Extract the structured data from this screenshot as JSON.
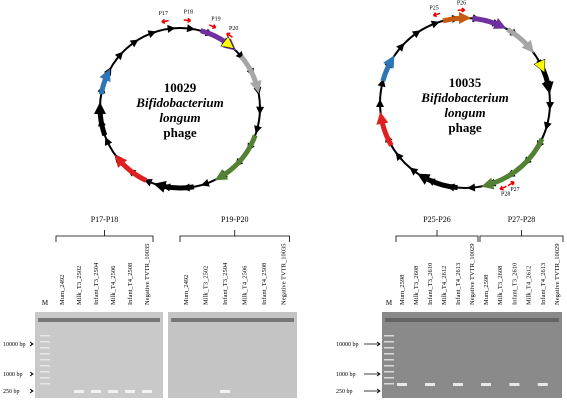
{
  "maps": [
    {
      "id": "10029",
      "species": "Bifidobacterium",
      "epithet": "longum",
      "kind": "phage",
      "primers": [
        "P17",
        "P18",
        "P19",
        "P20"
      ]
    },
    {
      "id": "10035",
      "species": "Bifidobacterium",
      "epithet": "longum",
      "kind": "phage",
      "primers": [
        "P25",
        "P26",
        "P27",
        "P28"
      ]
    }
  ],
  "gels": [
    {
      "ladder": "M",
      "markers": [
        "10000 bp",
        "1000 bp",
        "250 bp"
      ],
      "panels": [
        {
          "label": "P17-P18",
          "lanes": [
            "Mum_2492",
            "Milk_T3_2502",
            "Infant_T3_2504",
            "Milk_T4_2506",
            "Infant_T4_2508",
            "Negative TVTR_10035"
          ]
        },
        {
          "label": "P19-P20",
          "lanes": [
            "Mum_2492",
            "Milk_T3_2502",
            "Infant_T3_2504",
            "Milk_T4_2506",
            "Infant_T4_2508",
            "Negative TVTR_10035"
          ]
        }
      ]
    },
    {
      "ladder": "M",
      "markers": [
        "10000 bp",
        "1000 bp",
        "250 bp"
      ],
      "panels": [
        {
          "label": "P25-P26",
          "lanes": [
            "Mum_2598",
            "Milk_T3_2608",
            "Infant_T3_2610",
            "Milk_T4_2612",
            "Infant_T4_2613",
            "Negative TVTR_10029"
          ]
        },
        {
          "label": "P27-P28",
          "lanes": [
            "Mum_2598",
            "Milk_T3_2608",
            "Infant_T3_2610",
            "Milk_T4_2612",
            "Infant_T4_2613",
            "Negative TVTR_10029"
          ]
        }
      ]
    }
  ]
}
